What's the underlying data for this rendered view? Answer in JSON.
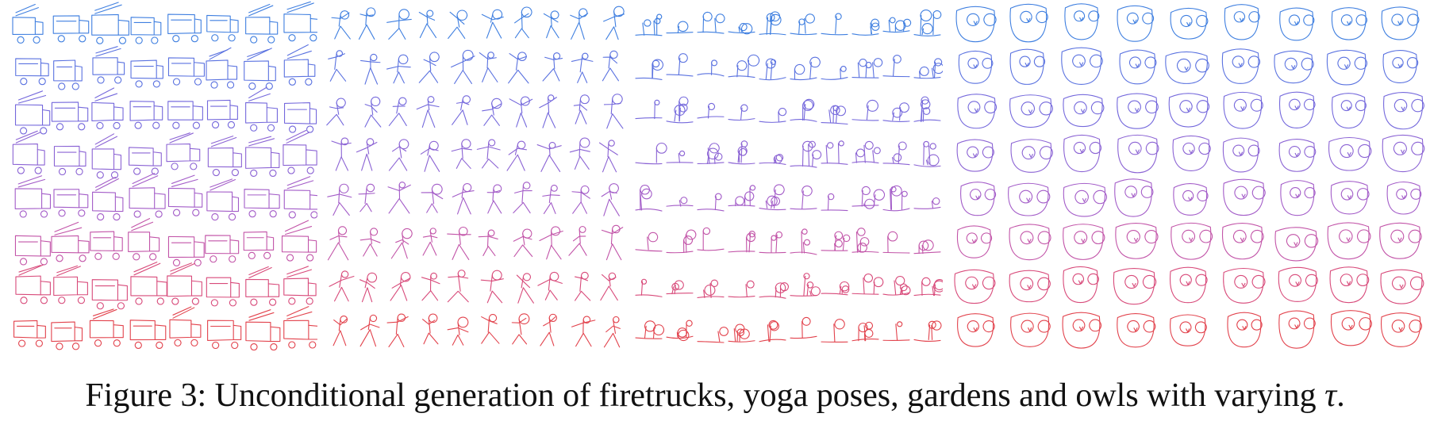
{
  "caption": {
    "label": "Figure 3:",
    "text": "Unconditional generation of firetrucks, yoga poses, gardens and owls with varying",
    "symbol": "τ",
    "end": "."
  },
  "panels": [
    {
      "id": "firetrucks",
      "sketch": "firetruck",
      "rows": 8,
      "cols": 8
    },
    {
      "id": "yoga",
      "sketch": "yoga",
      "rows": 8,
      "cols": 10
    },
    {
      "id": "gardens",
      "sketch": "garden",
      "rows": 8,
      "cols": 10
    },
    {
      "id": "owls",
      "sketch": "owl",
      "rows": 8,
      "cols": 9
    }
  ],
  "colors": {
    "row_gradient": [
      "#3f7fe0",
      "#5a72e0",
      "#7468dc",
      "#8b63d4",
      "#a35cc8",
      "#c254a8",
      "#d84a7a",
      "#e2424c"
    ]
  }
}
